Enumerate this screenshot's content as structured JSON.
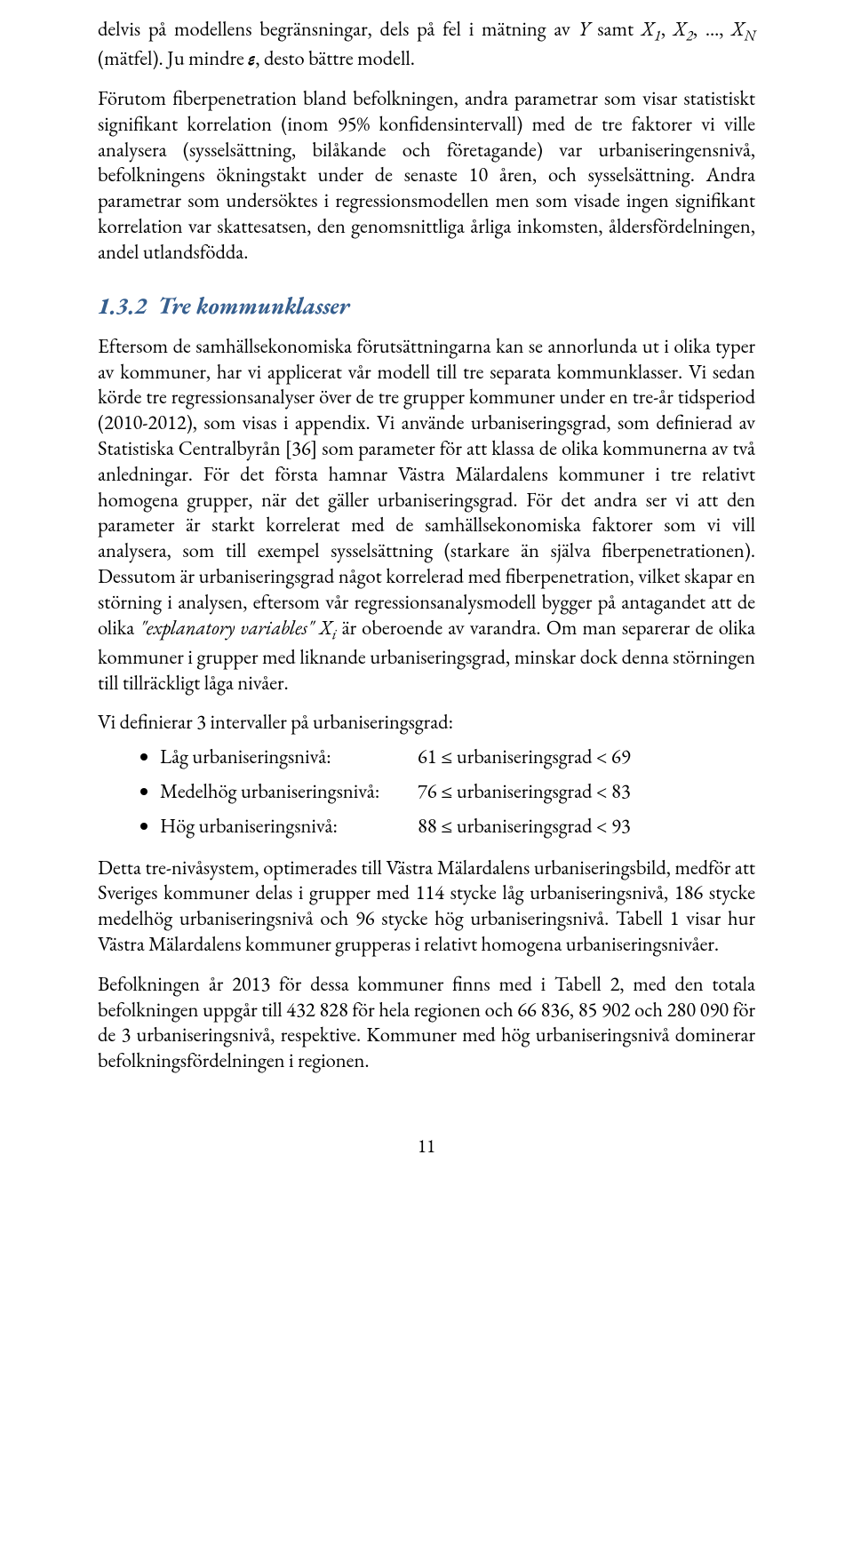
{
  "colors": {
    "text": "#000000",
    "heading": "#355e8e",
    "background": "#ffffff"
  },
  "typography": {
    "body_font": "Garamond",
    "body_size_pt": 12,
    "heading_size_pt": 14,
    "heading_style": "bold italic"
  },
  "paragraphs": {
    "p1_a": "delvis på modellens begränsningar, dels på fel i mätning av ",
    "p1_b": " samt ",
    "p1_c": ", ",
    "p1_d": " (mätfel). Ju mindre ",
    "p1_e": ", desto bättre modell.",
    "p2": "Förutom fiberpenetration bland befolkningen, andra parametrar som visar statistiskt signifikant korrelation (inom 95% konfidensintervall) med de tre faktorer vi ville analysera (sysselsättning, bilåkande och företagande) var urbaniseringensnivå, befolkningens ökningstakt under de senaste 10 åren, och sysselsättning. Andra parametrar som undersöktes i regressionsmodellen men som visade ingen signifikant korrelation var skattesatsen, den genomsnittliga årliga inkomsten, åldersfördelningen, andel utlandsfödda.",
    "p3_a": "Eftersom de samhällsekonomiska förutsättningarna kan se annorlunda ut i olika typer av kommuner, har vi applicerat vår modell till tre separata kommunklasser. Vi sedan körde tre regressionsanalyser över de tre grupper kommuner under en tre-år tidsperiod (2010-2012), som visas i appendix. Vi använde urbaniseringsgrad, som definierad av Statistiska Centralbyrån [36] som parameter för att klassa de olika kommunerna av två anledningar. För det första hamnar Västra Mälardalens kommuner i tre relativt homogena grupper, när det gäller urbaniseringsgrad. För det andra ser vi att den parameter är starkt korrelerat med de samhällsekonomiska faktorer som vi vill analysera, som till exempel sysselsättning (starkare än själva fiberpenetrationen). Dessutom är urbaniseringsgrad något korrelerad med fiberpenetration, vilket skapar en störning i analysen, eftersom vår regressionsanalysmodell bygger på antagandet att de olika ",
    "p3_b": " är oberoende av varandra. Om man separerar de olika kommuner i grupper med liknande urbaniseringsgrad, minskar dock denna störningen till tillräckligt låga nivåer.",
    "p4": "Vi definierar 3 intervaller på urbaniseringsgrad:",
    "p5": "Detta tre-nivåsystem, optimerades till Västra Mälardalens urbaniseringsbild, medför att Sveriges kommuner delas i grupper med 114 stycke låg urbaniseringsnivå, 186 stycke medelhög urbaniseringsnivå och 96 stycke hög urbaniseringsnivå. Tabell 1 visar hur Västra Mälardalens kommuner grupperas i relativt homogena urbaniseringsnivåer.",
    "p6": "Befolkningen år 2013 för dessa kommuner finns med i Tabell 2, med den totala befolkningen uppgår till 432 828 för hela regionen och 66 836, 85 902 och 280 090 för de 3 urbaniseringsnivå, respektive. Kommuner med hög urbaniseringsnivå dominerar befolkningsfördelningen i regionen."
  },
  "vars": {
    "Y": "Y",
    "X1": "X",
    "X1_sub": "1",
    "X2": "X",
    "X2_sub": "2",
    "dots": "…",
    "XN": "X",
    "XN_sub": "N",
    "eps": "ε",
    "expl_vars": "\"explanatory variables\" X",
    "expl_sub": "i"
  },
  "heading": {
    "number": "1.3.2",
    "title": "Tre kommunklasser"
  },
  "intervals": {
    "items": [
      {
        "label": "Låg urbaniseringsnivå:",
        "value": "61 ≤ urbaniseringsgrad < 69"
      },
      {
        "label": "Medelhög urbaniseringsnivå:",
        "value": "76 ≤ urbaniseringsgrad < 83"
      },
      {
        "label": "Hög urbaniseringsnivå:",
        "value": "88 ≤ urbaniseringsgrad < 93"
      }
    ]
  },
  "page_number": "11"
}
